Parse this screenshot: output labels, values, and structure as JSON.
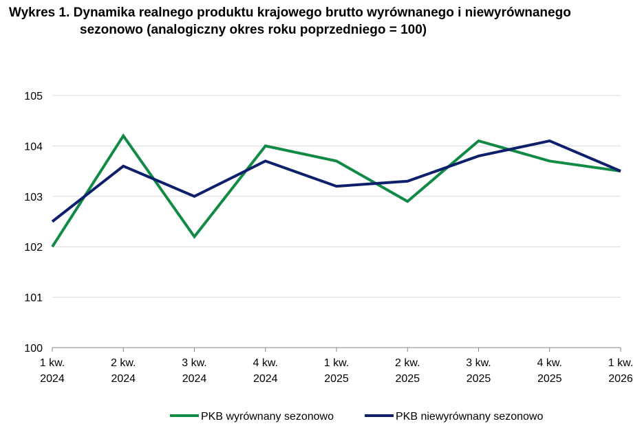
{
  "title": {
    "line1": "Wykres 1. Dynamika realnego produktu krajowego brutto wyrównanego i niewyrównanego",
    "line2": "sezonowo (analogiczny okres roku poprzedniego = 100)"
  },
  "chart_data": {
    "type": "line",
    "categories": [
      [
        "1 kw.",
        "2024"
      ],
      [
        "2 kw.",
        "2024"
      ],
      [
        "3 kw.",
        "2024"
      ],
      [
        "4 kw.",
        "2024"
      ],
      [
        "1 kw.",
        "2025"
      ],
      [
        "2 kw.",
        "2025"
      ],
      [
        "3 kw.",
        "2025"
      ],
      [
        "4 kw.",
        "2025"
      ],
      [
        "1 kw.",
        "2026"
      ]
    ],
    "ylim": [
      100,
      105
    ],
    "yticks": [
      "100",
      "101",
      "102",
      "103",
      "104",
      "105"
    ],
    "grid": true,
    "legend_position": "bottom",
    "series": [
      {
        "name": "PKB wyrównany sezonowo",
        "color": "#108a45",
        "values": [
          102.0,
          104.2,
          102.2,
          104.0,
          103.7,
          102.9,
          104.1,
          103.7,
          103.5
        ]
      },
      {
        "name": "PKB niewyrównany sezonowo",
        "color": "#0e1f6b",
        "values": [
          102.5,
          103.6,
          103.0,
          103.7,
          103.2,
          103.3,
          103.8,
          104.1,
          103.5
        ]
      }
    ]
  }
}
